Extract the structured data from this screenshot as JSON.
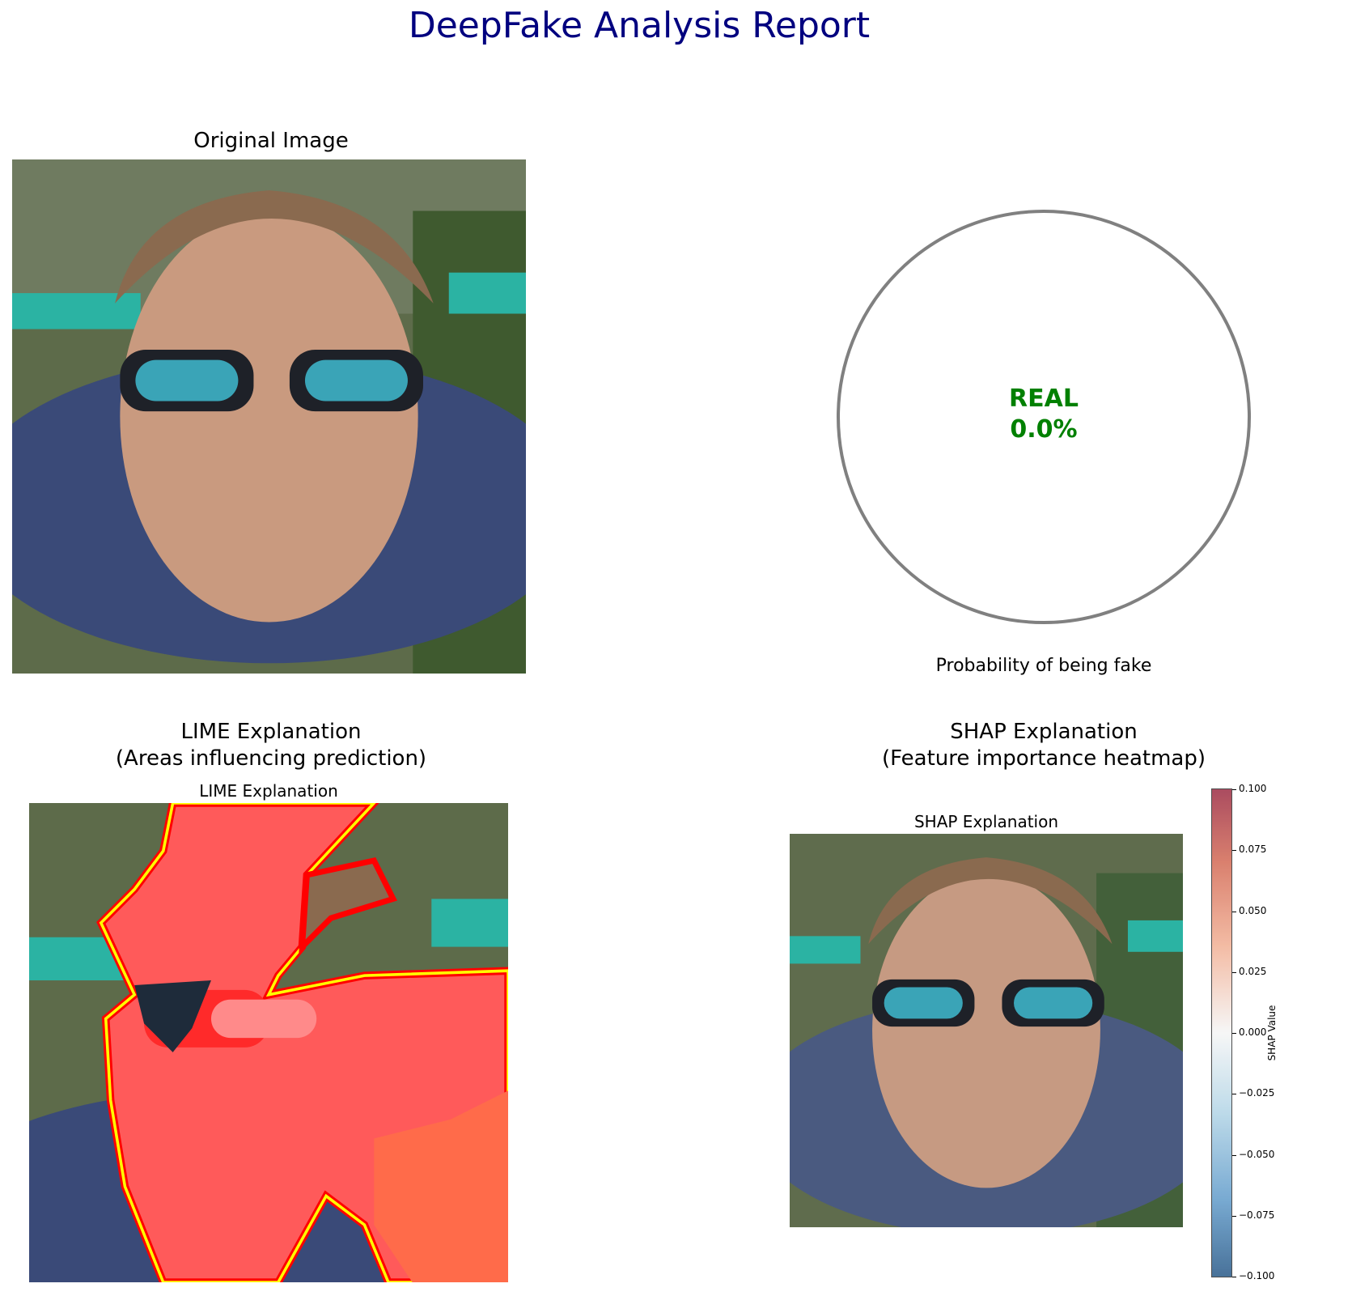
{
  "report": {
    "title": "DeepFake Analysis Report"
  },
  "original": {
    "title": "Original Image"
  },
  "gauge": {
    "verdict": "REAL",
    "percent": "0.0%",
    "caption": "Probability of being fake",
    "fake_probability": 0.0,
    "verdict_color": "#008000",
    "ring_color": "#808080"
  },
  "lime": {
    "title_line1": "LIME Explanation",
    "title_line2": "(Areas influencing prediction)",
    "inner_title": "LIME Explanation"
  },
  "shap": {
    "title_line1": "SHAP Explanation",
    "title_line2": "(Feature importance heatmap)",
    "inner_title": "SHAP Explanation",
    "colorbar": {
      "label": "SHAP Value",
      "ticks": [
        "0.100",
        "0.075",
        "0.050",
        "0.025",
        "0.000",
        "−0.025",
        "−0.050",
        "−0.075",
        "−0.100"
      ],
      "range": [
        -0.1,
        0.1
      ],
      "colormap": "RdBu_r"
    }
  }
}
